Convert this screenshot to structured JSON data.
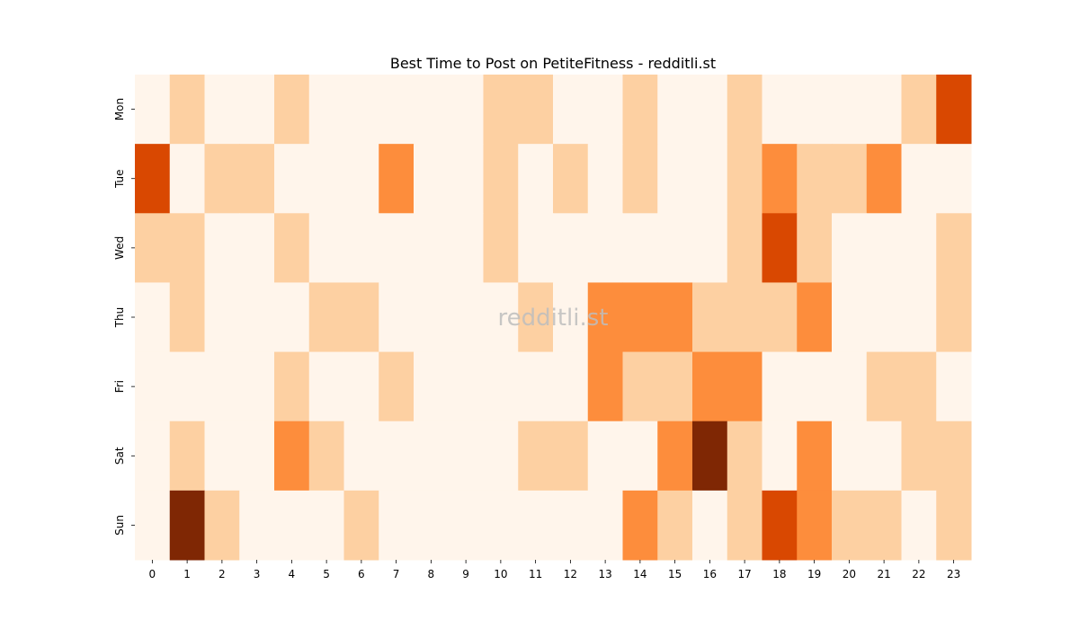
{
  "watermark": "redditli.st",
  "chart_data": {
    "type": "heatmap",
    "title": "Best Time to Post on PetiteFitness - redditli.st",
    "xlabel": "",
    "ylabel": "",
    "x_categories": [
      "0",
      "1",
      "2",
      "3",
      "4",
      "5",
      "6",
      "7",
      "8",
      "9",
      "10",
      "11",
      "12",
      "13",
      "14",
      "15",
      "16",
      "17",
      "18",
      "19",
      "20",
      "21",
      "22",
      "23"
    ],
    "y_categories": [
      "Mon",
      "Tue",
      "Wed",
      "Thu",
      "Fri",
      "Sat",
      "Sun"
    ],
    "values": [
      [
        0,
        1,
        0,
        0,
        1,
        0,
        0,
        0,
        0,
        0,
        1,
        1,
        0,
        0,
        1,
        0,
        0,
        1,
        0,
        0,
        0,
        0,
        1,
        3
      ],
      [
        3,
        0,
        1,
        1,
        0,
        0,
        0,
        2,
        0,
        0,
        1,
        0,
        1,
        0,
        1,
        0,
        0,
        1,
        2,
        1,
        1,
        2,
        0,
        0
      ],
      [
        1,
        1,
        0,
        0,
        1,
        0,
        0,
        0,
        0,
        0,
        1,
        0,
        0,
        0,
        0,
        0,
        0,
        1,
        3,
        1,
        0,
        0,
        0,
        1
      ],
      [
        0,
        1,
        0,
        0,
        0,
        1,
        1,
        0,
        0,
        0,
        0,
        1,
        0,
        2,
        2,
        2,
        1,
        1,
        1,
        2,
        0,
        0,
        0,
        1
      ],
      [
        0,
        0,
        0,
        0,
        1,
        0,
        0,
        1,
        0,
        0,
        0,
        0,
        0,
        2,
        1,
        1,
        2,
        2,
        0,
        0,
        0,
        1,
        1,
        0
      ],
      [
        0,
        1,
        0,
        0,
        2,
        1,
        0,
        0,
        0,
        0,
        0,
        1,
        1,
        0,
        0,
        2,
        4,
        1,
        0,
        2,
        0,
        0,
        1,
        1
      ],
      [
        0,
        4,
        1,
        0,
        0,
        0,
        1,
        0,
        0,
        0,
        0,
        0,
        0,
        0,
        2,
        1,
        0,
        1,
        3,
        2,
        1,
        1,
        0,
        1
      ]
    ],
    "vmin": 0,
    "vmax": 4,
    "colorscale": [
      "#fff5eb",
      "#fdd0a2",
      "#fd8d3c",
      "#d94801",
      "#7f2704"
    ],
    "colorbar": false
  }
}
